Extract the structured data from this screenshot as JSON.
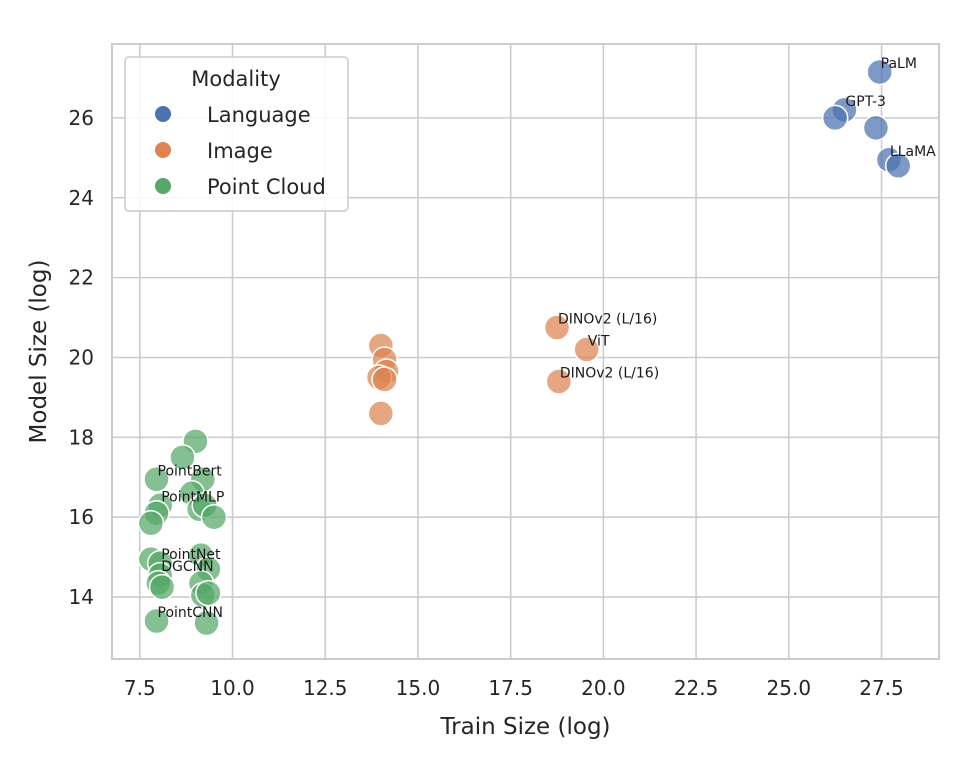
{
  "chart_data": {
    "type": "scatter",
    "xlabel": "Train Size (log)",
    "ylabel": "Model Size (log)",
    "xlim": [
      6.75,
      29.05
    ],
    "ylim": [
      12.45,
      27.85
    ],
    "x_ticks": [
      "7.5",
      "10.0",
      "12.5",
      "15.0",
      "17.5",
      "20.0",
      "22.5",
      "25.0",
      "27.5"
    ],
    "y_ticks": [
      "14",
      "16",
      "18",
      "20",
      "22",
      "24",
      "26"
    ],
    "grid": true,
    "legend": {
      "title": "Modality",
      "position": "top-left"
    },
    "series": [
      {
        "name": "Language",
        "color": "#4c72b0",
        "points": [
          {
            "x": 27.45,
            "y": 27.15,
            "label": "PaLM"
          },
          {
            "x": 26.5,
            "y": 26.2,
            "label": "GPT-3"
          },
          {
            "x": 26.25,
            "y": 26.0
          },
          {
            "x": 27.35,
            "y": 25.75
          },
          {
            "x": 27.7,
            "y": 24.95,
            "label": "LLaMA"
          },
          {
            "x": 27.95,
            "y": 24.8
          }
        ]
      },
      {
        "name": "Image",
        "color": "#dd8452",
        "points": [
          {
            "x": 18.75,
            "y": 20.75,
            "label": "DINOv2 (L/16)"
          },
          {
            "x": 19.55,
            "y": 20.2,
            "label": "ViT"
          },
          {
            "x": 18.8,
            "y": 19.4,
            "label": "DINOv2 (L/16)"
          },
          {
            "x": 14.0,
            "y": 20.3
          },
          {
            "x": 14.1,
            "y": 19.95
          },
          {
            "x": 14.15,
            "y": 19.65
          },
          {
            "x": 13.95,
            "y": 19.5
          },
          {
            "x": 14.1,
            "y": 19.45
          },
          {
            "x": 14.0,
            "y": 18.6
          }
        ]
      },
      {
        "name": "Point Cloud",
        "color": "#55a868",
        "points": [
          {
            "x": 9.0,
            "y": 17.9
          },
          {
            "x": 8.65,
            "y": 17.5
          },
          {
            "x": 7.95,
            "y": 16.95,
            "label": "PointBert"
          },
          {
            "x": 9.2,
            "y": 16.95
          },
          {
            "x": 8.9,
            "y": 16.6
          },
          {
            "x": 8.05,
            "y": 16.3,
            "label": "PointMLP"
          },
          {
            "x": 9.1,
            "y": 16.2
          },
          {
            "x": 9.25,
            "y": 16.3
          },
          {
            "x": 7.95,
            "y": 16.1
          },
          {
            "x": 7.8,
            "y": 15.85
          },
          {
            "x": 9.5,
            "y": 16.0
          },
          {
            "x": 7.8,
            "y": 14.95
          },
          {
            "x": 9.15,
            "y": 15.05
          },
          {
            "x": 8.05,
            "y": 14.85,
            "label": "PointNet"
          },
          {
            "x": 9.35,
            "y": 14.7
          },
          {
            "x": 8.05,
            "y": 14.55,
            "label": "DGCNN"
          },
          {
            "x": 8.0,
            "y": 14.35
          },
          {
            "x": 8.1,
            "y": 14.25
          },
          {
            "x": 9.15,
            "y": 14.35
          },
          {
            "x": 9.2,
            "y": 14.05
          },
          {
            "x": 9.35,
            "y": 14.1
          },
          {
            "x": 7.95,
            "y": 13.4,
            "label": "PointCNN"
          },
          {
            "x": 9.3,
            "y": 13.35
          }
        ]
      }
    ]
  }
}
